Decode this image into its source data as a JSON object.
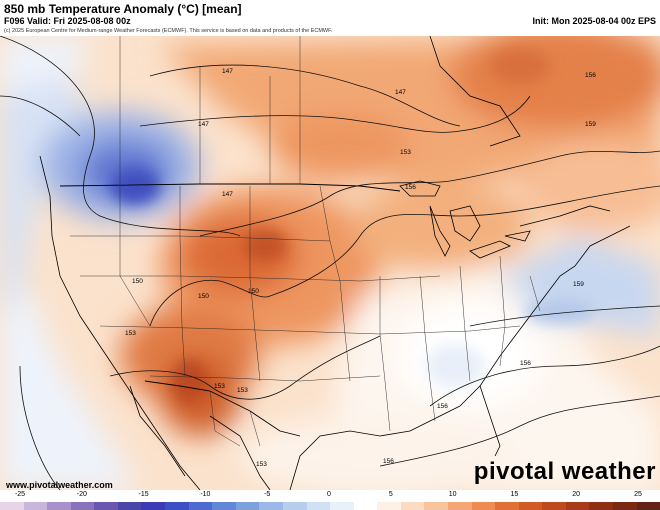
{
  "header": {
    "title": "850 mb Temperature Anomaly (°C) [mean]",
    "valid": "F096 Valid: Fri 2025-08-08 00z",
    "init": "Init: Mon 2025-08-04 00z EPS",
    "credit": "(c) 2025 European Centre for Medium-range Weather Forecasts (ECMWF). This service is based on data and products of the ECMWF."
  },
  "footer": {
    "site": "www.pivotalweather.com",
    "brand": "pivotal weather"
  },
  "contour_labels": [
    "147",
    "147",
    "147",
    "147",
    "150",
    "150",
    "150",
    "153",
    "153",
    "153",
    "153",
    "153",
    "156",
    "156",
    "156",
    "156",
    "156",
    "159",
    "159"
  ],
  "colorbar": {
    "ticks": [
      "-25",
      "-20",
      "-15",
      "-10",
      "-5",
      "0",
      "5",
      "10",
      "15",
      "20",
      "25"
    ],
    "colors": [
      "#e7d4e8",
      "#c9b6dd",
      "#a992cc",
      "#8a73bd",
      "#6a58b0",
      "#4b47a8",
      "#3b3bb6",
      "#3d4fc4",
      "#4d6ad0",
      "#6486d8",
      "#7fa0df",
      "#9bb8e6",
      "#b6cdee",
      "#d0e0f5",
      "#e8f0fa",
      "#ffffff",
      "#fdf0e4",
      "#fbdcc2",
      "#f8c49c",
      "#f4a774",
      "#ee8b52",
      "#e27036",
      "#d25a26",
      "#bf4a1e",
      "#a83b18",
      "#8f3015",
      "#7a2a14",
      "#642316"
    ]
  }
}
